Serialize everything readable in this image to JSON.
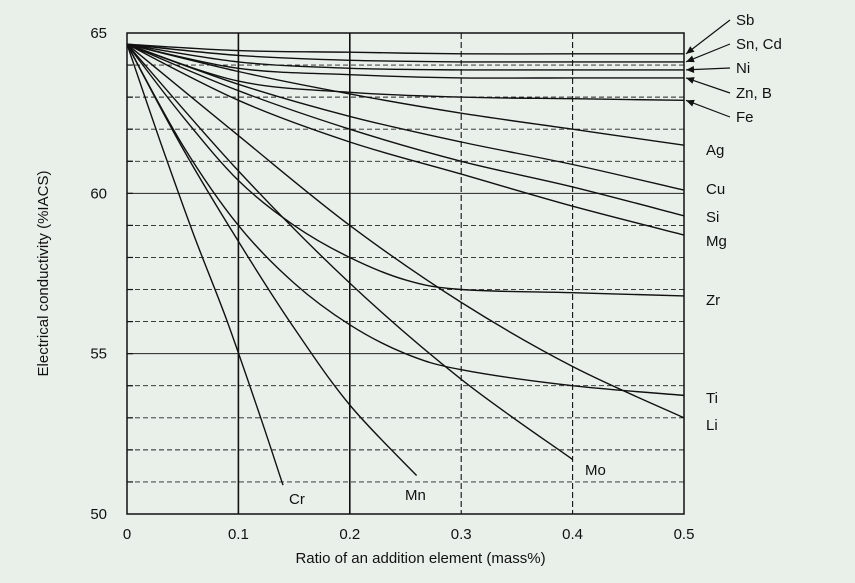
{
  "chart_data": {
    "type": "line",
    "title": "",
    "xlabel": "Ratio of an addition element (mass%)",
    "ylabel": "Electrical conductivity (%IACS)",
    "xlim": [
      0,
      0.5
    ],
    "ylim": [
      50,
      65
    ],
    "xticks": [
      "0",
      "0.1",
      "0.2",
      "0.3",
      "0.4",
      "0.5"
    ],
    "yticks": [
      "50",
      "55",
      "60",
      "65"
    ],
    "grid": true,
    "legend": "none",
    "series": [
      {
        "name": "Sb",
        "x": [
          0,
          0.1,
          0.2,
          0.3,
          0.4,
          0.5
        ],
        "y": [
          64.65,
          64.45,
          64.4,
          64.35,
          64.35,
          64.35
        ]
      },
      {
        "name": "Sn, Cd",
        "x": [
          0,
          0.1,
          0.2,
          0.3,
          0.4,
          0.5
        ],
        "y": [
          64.65,
          64.3,
          64.15,
          64.1,
          64.1,
          64.1
        ]
      },
      {
        "name": "Ni",
        "x": [
          0,
          0.1,
          0.2,
          0.3,
          0.4,
          0.5
        ],
        "y": [
          64.65,
          64.1,
          63.9,
          63.85,
          63.85,
          63.85
        ]
      },
      {
        "name": "Zn, B",
        "x": [
          0,
          0.1,
          0.2,
          0.3,
          0.4,
          0.5
        ],
        "y": [
          64.65,
          63.9,
          63.7,
          63.6,
          63.6,
          63.6
        ]
      },
      {
        "name": "Fe",
        "x": [
          0,
          0.1,
          0.2,
          0.3,
          0.4,
          0.5
        ],
        "y": [
          64.65,
          63.5,
          63.15,
          63.0,
          62.95,
          62.9
        ]
      },
      {
        "name": "Ag",
        "x": [
          0,
          0.1,
          0.2,
          0.3,
          0.4,
          0.5
        ],
        "y": [
          64.65,
          63.8,
          63.1,
          62.5,
          62.0,
          61.5
        ]
      },
      {
        "name": "Cu",
        "x": [
          0,
          0.1,
          0.2,
          0.3,
          0.4,
          0.5
        ],
        "y": [
          64.65,
          63.4,
          62.4,
          61.6,
          60.9,
          60.1
        ]
      },
      {
        "name": "Si",
        "x": [
          0,
          0.1,
          0.2,
          0.3,
          0.4,
          0.5
        ],
        "y": [
          64.65,
          63.2,
          62.0,
          61.0,
          60.2,
          59.3
        ]
      },
      {
        "name": "Mg",
        "x": [
          0,
          0.1,
          0.2,
          0.3,
          0.4,
          0.5
        ],
        "y": [
          64.65,
          62.9,
          61.6,
          60.6,
          59.6,
          58.7
        ]
      },
      {
        "name": "Zr",
        "x": [
          0,
          0.05,
          0.1,
          0.15,
          0.2,
          0.25,
          0.3,
          0.4,
          0.5
        ],
        "y": [
          64.65,
          62.4,
          60.4,
          59.0,
          58.0,
          57.3,
          57.0,
          56.9,
          56.8
        ]
      },
      {
        "name": "Ti",
        "x": [
          0,
          0.05,
          0.1,
          0.15,
          0.2,
          0.25,
          0.3,
          0.4,
          0.5
        ],
        "y": [
          64.65,
          61.5,
          59.0,
          57.2,
          55.9,
          55.0,
          54.5,
          54.0,
          53.7
        ]
      },
      {
        "name": "Li",
        "x": [
          0,
          0.1,
          0.2,
          0.3,
          0.4,
          0.5
        ],
        "y": [
          64.65,
          61.8,
          59.0,
          56.6,
          54.6,
          53.0
        ]
      },
      {
        "name": "Mo",
        "x": [
          0,
          0.1,
          0.2,
          0.3,
          0.4
        ],
        "y": [
          64.65,
          60.7,
          57.2,
          54.2,
          51.7
        ]
      },
      {
        "name": "Mn",
        "x": [
          0,
          0.05,
          0.1,
          0.15,
          0.2,
          0.26
        ],
        "y": [
          64.65,
          61.4,
          58.5,
          55.8,
          53.4,
          51.2
        ]
      },
      {
        "name": "Cr",
        "x": [
          0,
          0.03,
          0.06,
          0.09,
          0.12,
          0.14
        ],
        "y": [
          64.65,
          61.6,
          58.7,
          56.0,
          53.0,
          50.9
        ]
      }
    ]
  }
}
